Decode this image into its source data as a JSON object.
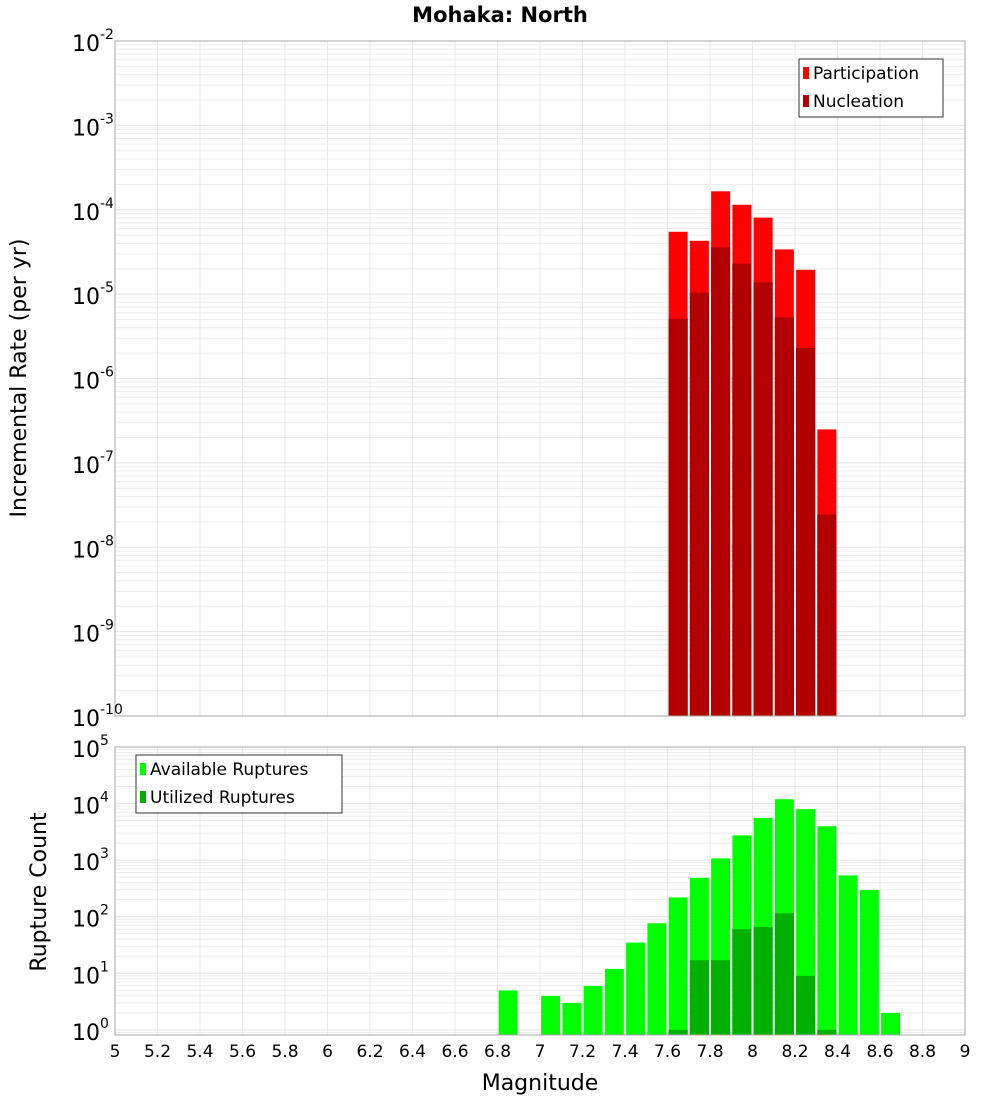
{
  "title": "Mohaka: North",
  "chart_data": [
    {
      "type": "bar",
      "title": "Mohaka: North",
      "xlabel": "Magnitude",
      "ylabel": "Incremental Rate (per yr)",
      "yscale": "log",
      "xlim": [
        5,
        9
      ],
      "ylim": [
        1e-10,
        0.01
      ],
      "x_ticks": [
        "5",
        "5.2",
        "5.4",
        "5.6",
        "5.8",
        "6",
        "6.2",
        "6.4",
        "6.6",
        "6.8",
        "7",
        "7.2",
        "7.4",
        "7.6",
        "7.8",
        "8",
        "8.2",
        "8.4",
        "8.6",
        "8.8",
        "9"
      ],
      "y_tick_exponents": [
        "-10",
        "-9",
        "-8",
        "-7",
        "-6",
        "-5",
        "-4",
        "-3",
        "-2"
      ],
      "bin_width": 0.1,
      "grid": true,
      "legend_position": "top-right",
      "x": [
        7.65,
        7.75,
        7.85,
        7.95,
        8.05,
        8.15,
        8.25,
        8.35
      ],
      "series": [
        {
          "name": "Participation",
          "color": "#ff0000",
          "values": [
            5.5e-05,
            4.3e-05,
            0.000166,
            0.000115,
            8.1e-05,
            3.4e-05,
            1.95e-05,
            2.5e-07
          ]
        },
        {
          "name": "Nucleation",
          "color": "#b20000",
          "values": [
            5.1e-06,
            1.04e-05,
            3.6e-05,
            2.3e-05,
            1.38e-05,
            5.3e-06,
            2.3e-06,
            2.45e-08
          ]
        }
      ]
    },
    {
      "type": "bar",
      "xlabel": "Magnitude",
      "ylabel": "Rupture Count",
      "yscale": "log",
      "xlim": [
        5,
        9
      ],
      "ylim": [
        0.81,
        100000
      ],
      "y_tick_exponents": [
        "0",
        "1",
        "2",
        "3",
        "4",
        "5"
      ],
      "bin_width": 0.1,
      "grid": true,
      "legend_position": "top-left",
      "x": [
        6.85,
        7.05,
        7.15,
        7.25,
        7.35,
        7.45,
        7.55,
        7.65,
        7.75,
        7.85,
        7.95,
        8.05,
        8.15,
        8.25,
        8.35,
        8.45,
        8.55,
        8.65
      ],
      "series": [
        {
          "name": "Available Ruptures",
          "color": "#00ff00",
          "values": [
            5,
            4,
            3,
            6,
            12,
            35,
            77,
            220,
            490,
            1080,
            2750,
            5600,
            12000,
            8000,
            4000,
            540,
            297,
            2
          ]
        },
        {
          "name": "Utilized Ruptures",
          "color": "#00b000",
          "values": [
            0,
            0,
            0,
            0,
            0,
            0,
            0,
            1,
            17,
            17,
            60,
            66,
            115,
            9,
            1,
            0,
            0,
            0
          ]
        }
      ]
    }
  ]
}
